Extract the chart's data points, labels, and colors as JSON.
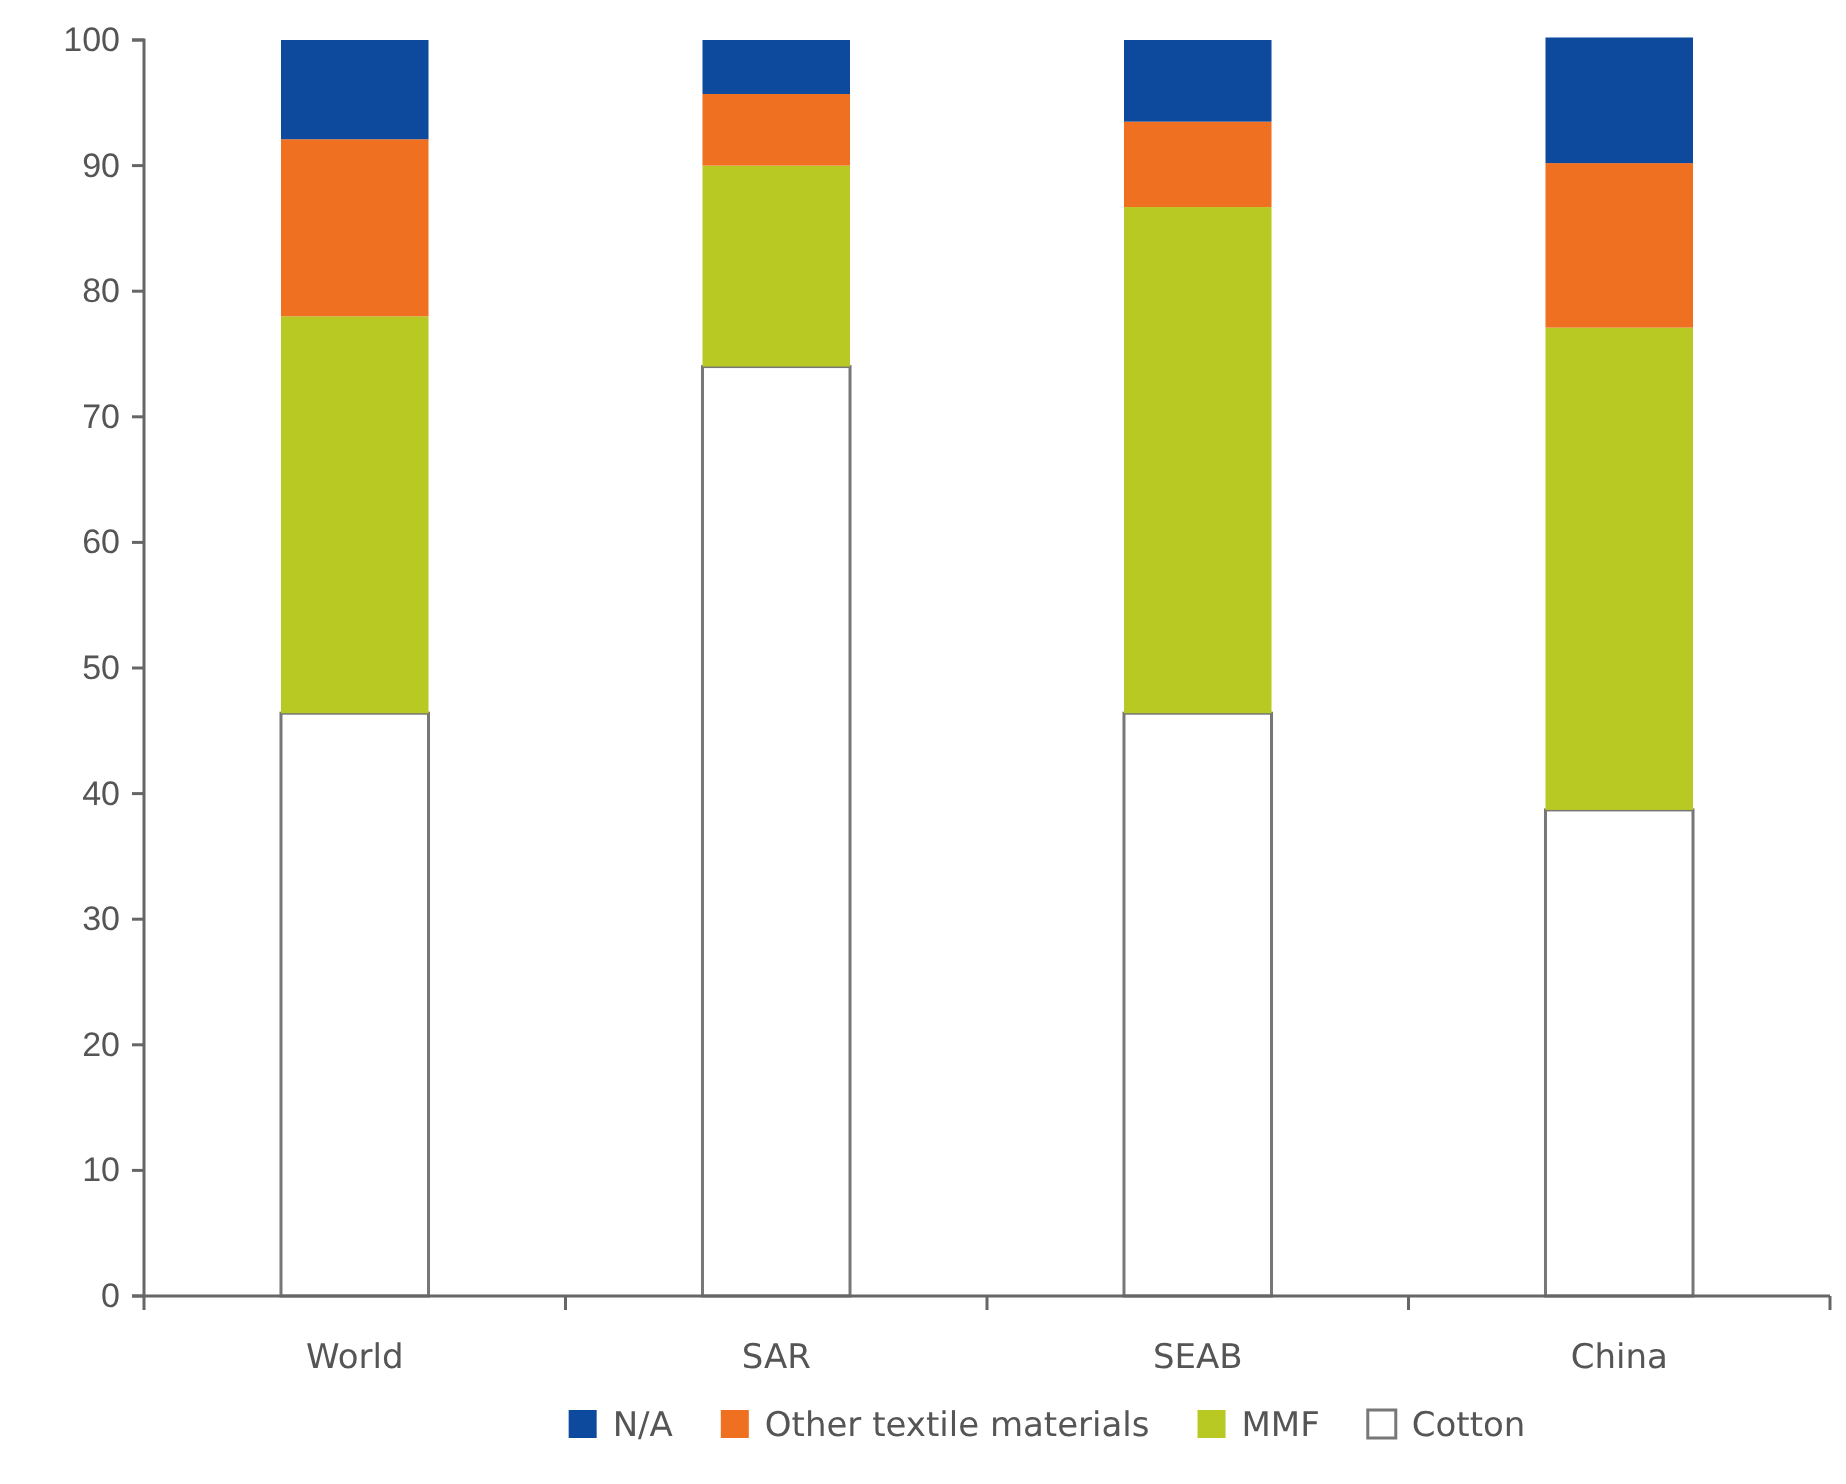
{
  "chart_data": {
    "type": "bar",
    "stacked": true,
    "categories": [
      "World",
      "SAR",
      "SEAB",
      "China"
    ],
    "series": [
      {
        "name": "Cotton",
        "color": "#ffffff",
        "values": [
          46.4,
          74.0,
          46.4,
          38.7
        ]
      },
      {
        "name": "MMF",
        "color": "#b8c924",
        "values": [
          31.6,
          16.0,
          40.3,
          38.4
        ]
      },
      {
        "name": "Other textile materials",
        "color": "#f07022",
        "values": [
          14.1,
          5.7,
          6.8,
          13.1
        ]
      },
      {
        "name": "N/A",
        "color": "#0d4a9e",
        "values": [
          7.9,
          4.3,
          6.5,
          10.0
        ]
      }
    ],
    "ylim": [
      0,
      100
    ],
    "yticks": [
      0,
      10,
      20,
      30,
      40,
      50,
      60,
      70,
      80,
      90,
      100
    ],
    "grid": false,
    "legend": "bottom"
  }
}
